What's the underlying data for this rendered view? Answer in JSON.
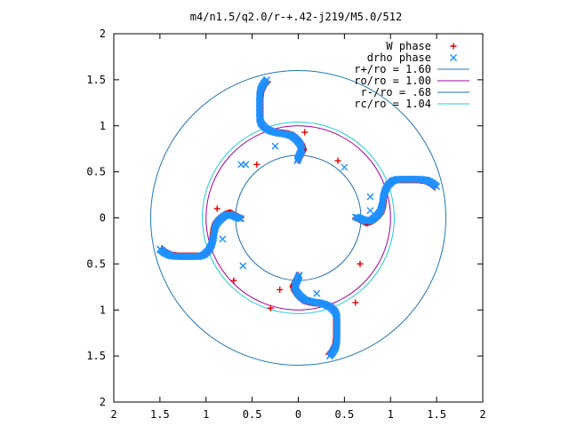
{
  "chart_data": {
    "type": "scatter",
    "title": "m4/n1.5/q2.0/r-+.42-j219/M5.0/512",
    "xlabel": "",
    "ylabel": "",
    "xlim": [
      -2,
      2
    ],
    "ylim": [
      -2,
      2
    ],
    "x_tick_values": [
      -2,
      -1.5,
      -1,
      -0.5,
      0,
      0.5,
      1,
      1.5,
      2
    ],
    "x_tick_labels": [
      "2",
      "1.5",
      "1",
      "0.5",
      "0",
      "0.5",
      "1",
      "1.5",
      "2"
    ],
    "y_tick_values": [
      2,
      1.5,
      1,
      0.5,
      0,
      -0.5,
      -1,
      -1.5,
      -2
    ],
    "y_tick_labels": [
      "2",
      "1.5",
      "1",
      "0.5",
      "0",
      "0.5",
      "1",
      "1.5",
      "2"
    ],
    "grid": false,
    "legend_position": "top-right",
    "circles": [
      {
        "label": "r+/ro = 1.60",
        "radius": 1.6,
        "color": "#1f77b4"
      },
      {
        "label": "ro/ro = 1.00",
        "radius": 1.0,
        "color": "#a000a0"
      },
      {
        "label": "r-/ro = .68",
        "radius": 0.68,
        "color": "#1f6fb4"
      },
      {
        "label": "rc/ro = 1.04",
        "radius": 1.04,
        "color": "#20c8d8"
      }
    ],
    "series": [
      {
        "name": "W phase",
        "marker": "+",
        "color": "#e00000",
        "arm_base": [
          [
            0.0,
            0.62
          ],
          [
            0.03,
            0.68
          ],
          [
            0.06,
            0.74
          ],
          [
            0.04,
            0.8
          ],
          [
            0.0,
            0.86
          ],
          [
            -0.05,
            0.9
          ],
          [
            -0.12,
            0.92
          ],
          [
            -0.2,
            0.93
          ],
          [
            -0.28,
            0.94
          ],
          [
            -0.34,
            0.96
          ],
          [
            -0.39,
            1.0
          ],
          [
            -0.41,
            1.06
          ],
          [
            -0.41,
            1.14
          ],
          [
            -0.41,
            1.22
          ],
          [
            -0.41,
            1.3
          ],
          [
            -0.4,
            1.37
          ],
          [
            -0.37,
            1.43
          ],
          [
            -0.33,
            1.48
          ]
        ],
        "extra_points": [
          [
            -0.88,
            0.1
          ],
          [
            -0.8,
            0.03
          ],
          [
            -0.45,
            0.58
          ],
          [
            0.43,
            0.62
          ],
          [
            -0.7,
            -0.68
          ],
          [
            0.67,
            -0.5
          ],
          [
            -0.2,
            -0.78
          ],
          [
            0.62,
            -0.92
          ],
          [
            0.07,
            0.93
          ],
          [
            -0.3,
            -0.98
          ]
        ]
      },
      {
        "name": "drho phase",
        "marker": "x",
        "color": "#1e90ff",
        "arm_base": [
          [
            -0.01,
            0.62
          ],
          [
            0.01,
            0.68
          ],
          [
            0.04,
            0.74
          ],
          [
            0.02,
            0.8
          ],
          [
            -0.02,
            0.85
          ],
          [
            -0.07,
            0.89
          ],
          [
            -0.14,
            0.91
          ],
          [
            -0.22,
            0.92
          ],
          [
            -0.29,
            0.94
          ],
          [
            -0.35,
            0.97
          ],
          [
            -0.4,
            1.02
          ],
          [
            -0.42,
            1.08
          ],
          [
            -0.42,
            1.16
          ],
          [
            -0.42,
            1.24
          ],
          [
            -0.42,
            1.32
          ],
          [
            -0.41,
            1.39
          ],
          [
            -0.38,
            1.45
          ],
          [
            -0.34,
            1.5
          ]
        ],
        "extra_points": [
          [
            0.78,
            0.23
          ],
          [
            -0.82,
            -0.23
          ],
          [
            0.5,
            0.55
          ],
          [
            -0.6,
            -0.52
          ],
          [
            -0.25,
            0.78
          ],
          [
            0.2,
            -0.82
          ],
          [
            -0.57,
            0.58
          ],
          [
            0.78,
            0.08
          ],
          [
            -0.62,
            0.58
          ],
          [
            0.77,
            -0.02
          ]
        ]
      }
    ]
  }
}
